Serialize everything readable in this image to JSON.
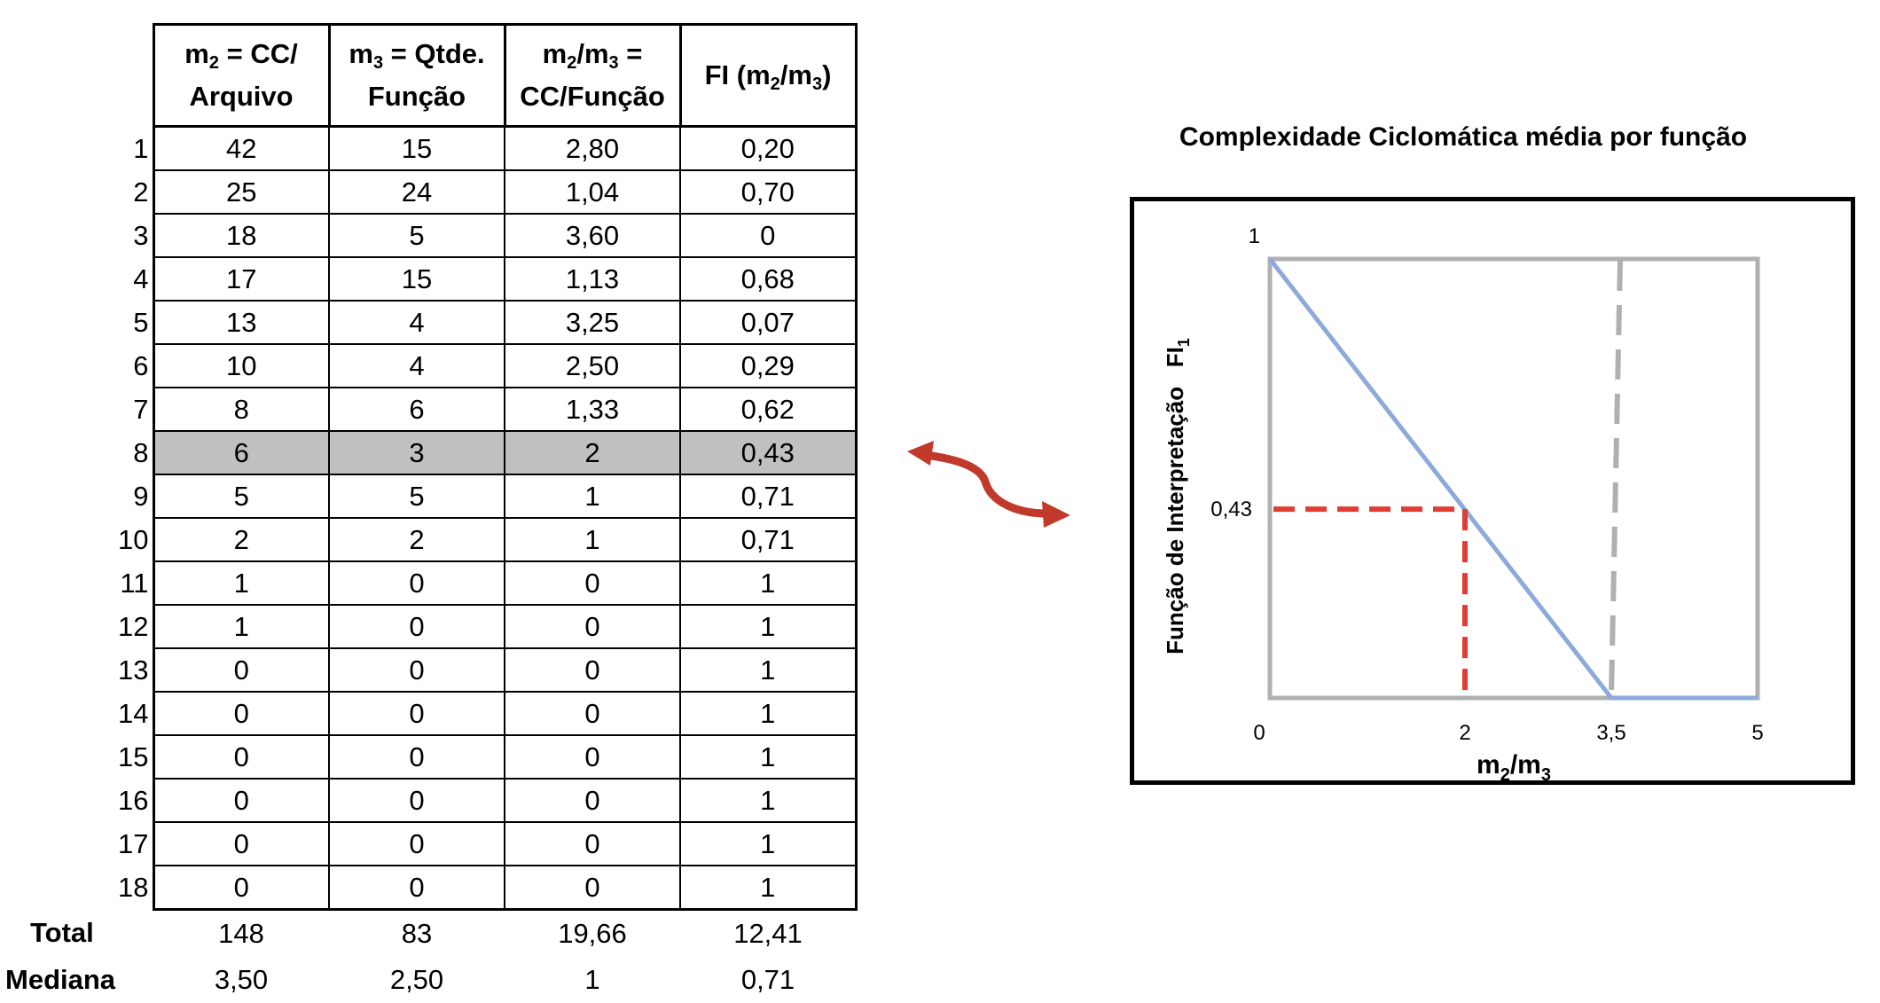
{
  "table": {
    "headers": [
      {
        "line1": "m",
        "sub1": "2",
        "rest1": " = CC/",
        "line2": "Arquivo"
      },
      {
        "line1": "m",
        "sub1": "3",
        "rest1": " = Qtde.",
        "line2": "Função"
      },
      {
        "line1": "m",
        "sub1": "2",
        "rest1": "/m",
        "sub2": "3",
        "rest2": " =",
        "line2": "CC/Função"
      },
      {
        "label": "FI (m",
        "sub1": "2",
        "mid": "/m",
        "sub2": "3",
        "end": ")"
      }
    ],
    "rows": [
      {
        "idx": "1",
        "cells": [
          "42",
          "15",
          "2,80",
          "0,20"
        ]
      },
      {
        "idx": "2",
        "cells": [
          "25",
          "24",
          "1,04",
          "0,70"
        ]
      },
      {
        "idx": "3",
        "cells": [
          "18",
          "5",
          "3,60",
          "0"
        ]
      },
      {
        "idx": "4",
        "cells": [
          "17",
          "15",
          "1,13",
          "0,68"
        ]
      },
      {
        "idx": "5",
        "cells": [
          "13",
          "4",
          "3,25",
          "0,07"
        ]
      },
      {
        "idx": "6",
        "cells": [
          "10",
          "4",
          "2,50",
          "0,29"
        ]
      },
      {
        "idx": "7",
        "cells": [
          "8",
          "6",
          "1,33",
          "0,62"
        ]
      },
      {
        "idx": "8",
        "cells": [
          "6",
          "3",
          "2",
          "0,43"
        ],
        "highlight": true
      },
      {
        "idx": "9",
        "cells": [
          "5",
          "5",
          "1",
          "0,71"
        ]
      },
      {
        "idx": "10",
        "cells": [
          "2",
          "2",
          "1",
          "0,71"
        ]
      },
      {
        "idx": "11",
        "cells": [
          "1",
          "0",
          "0",
          "1"
        ]
      },
      {
        "idx": "12",
        "cells": [
          "1",
          "0",
          "0",
          "1"
        ]
      },
      {
        "idx": "13",
        "cells": [
          "0",
          "0",
          "0",
          "1"
        ]
      },
      {
        "idx": "14",
        "cells": [
          "0",
          "0",
          "0",
          "1"
        ]
      },
      {
        "idx": "15",
        "cells": [
          "0",
          "0",
          "0",
          "1"
        ]
      },
      {
        "idx": "16",
        "cells": [
          "0",
          "0",
          "0",
          "1"
        ]
      },
      {
        "idx": "17",
        "cells": [
          "0",
          "0",
          "0",
          "1"
        ]
      },
      {
        "idx": "18",
        "cells": [
          "0",
          "0",
          "0",
          "1"
        ]
      }
    ],
    "footer": [
      {
        "label": "Total",
        "cells": [
          "148",
          "83",
          "19,66",
          "12,41"
        ]
      },
      {
        "label": "Mediana",
        "cells": [
          "3,50",
          "2,50",
          "1",
          "0,71"
        ]
      }
    ],
    "highlight_color": "#c0c0c0"
  },
  "chart_data": {
    "type": "line",
    "title": "Complexidade Ciclomática média por função",
    "xlabel": "m2/m3",
    "xlabel_parts": {
      "base1": "m",
      "sub1": "2",
      "mid": "/m",
      "sub2": "3"
    },
    "ylabel": "Função de Interpretação   FI1",
    "ylabel_parts": {
      "main": "Função de Interpretação   FI",
      "sub": "1"
    },
    "xlim": [
      0,
      5
    ],
    "ylim": [
      0,
      1
    ],
    "x_ticks": [
      {
        "value": 0,
        "label": "0"
      },
      {
        "value": 2,
        "label": "2"
      },
      {
        "value": 3.5,
        "label": "3,5"
      },
      {
        "value": 5,
        "label": "5"
      }
    ],
    "y_ticks": [
      {
        "value": 1,
        "label": "1"
      },
      {
        "value": 0.43,
        "label": "0,43"
      }
    ],
    "series": [
      {
        "points": [
          [
            0,
            1
          ],
          [
            3.5,
            0
          ],
          [
            5,
            0
          ]
        ],
        "color": "#8eaadb"
      }
    ],
    "threshold_x": 3.5,
    "highlight_point": {
      "x": 2,
      "y": 0.43,
      "color": "#e03c31"
    },
    "threshold_color": "#b0b0b0",
    "box_color": "#b0b0b0",
    "grid": false,
    "legend": "none"
  },
  "arrow_color": "#c0392b"
}
